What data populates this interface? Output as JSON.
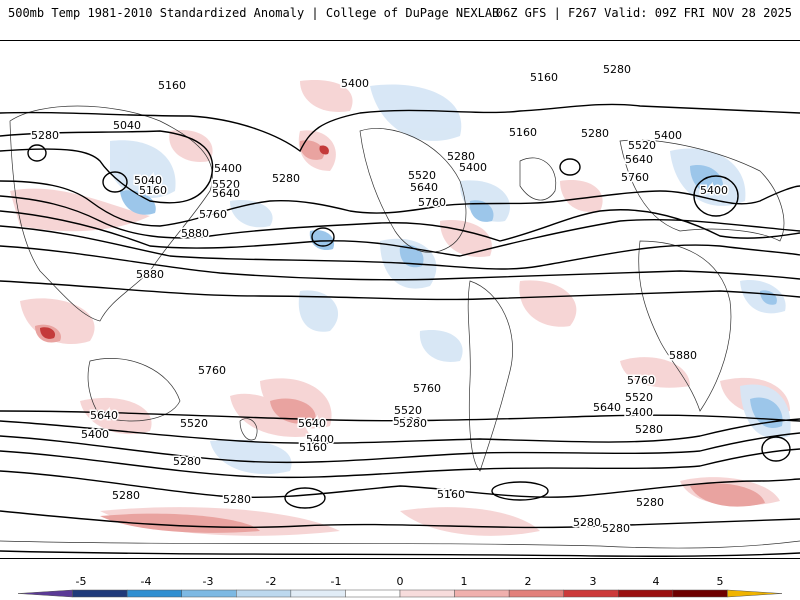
{
  "header": {
    "left": "500mb Temp 1981-2010 Standardized Anomaly | College of DuPage NEXLAB",
    "right": "06Z GFS | F267 Valid: 09Z FRI NOV 28 2025"
  },
  "contour_labels": [
    "5160",
    "5280",
    "5400",
    "5040",
    "5520",
    "5640",
    "5760",
    "5880"
  ],
  "colorbar": {
    "ticks": [
      "-5",
      "-4",
      "-3",
      "-2",
      "-1",
      "0",
      "1",
      "2",
      "3",
      "4",
      "5"
    ],
    "colors": [
      "#5b3a96",
      "#1f3a7a",
      "#2f8fd1",
      "#7db9e3",
      "#bcd8ee",
      "#e1ecf6",
      "#ffffff",
      "#f7dcdc",
      "#f0b0ad",
      "#e2807b",
      "#cc3a3a",
      "#9a1010",
      "#6e0000",
      "#f0b400"
    ]
  }
}
